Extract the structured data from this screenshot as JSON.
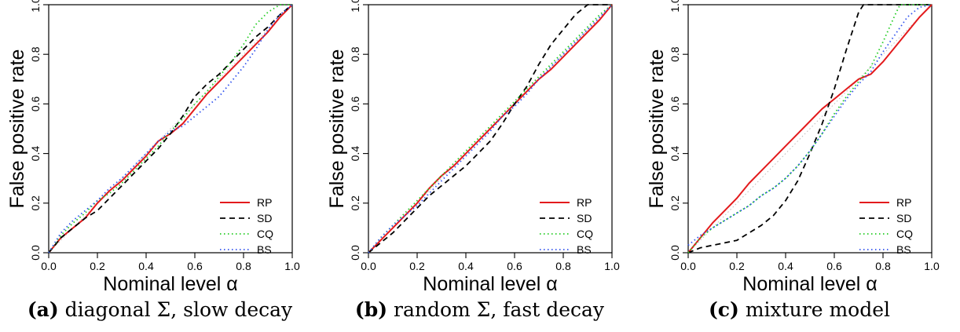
{
  "chart_data": [
    {
      "type": "line",
      "caption_tag": "(a)",
      "caption_text": "diagonal Σ, slow decay",
      "xlabel": "Nominal level α",
      "ylabel": "False positive rate",
      "xlim": [
        0,
        1
      ],
      "ylim": [
        0,
        1
      ],
      "xticks": [
        "0.0",
        "0.2",
        "0.4",
        "0.6",
        "0.8",
        "1.0"
      ],
      "yticks": [
        "0.0",
        "0.2",
        "0.4",
        "0.6",
        "0.8",
        "1.0"
      ],
      "grid": false,
      "legend_position": "bottom-right",
      "reference_line": {
        "x": [
          0,
          1
        ],
        "y": [
          0,
          1
        ],
        "color": "#bbbbbb"
      },
      "series": [
        {
          "name": "RP",
          "color": "#e31a1c",
          "style": "solid",
          "x": [
            0,
            0.05,
            0.1,
            0.15,
            0.2,
            0.25,
            0.3,
            0.35,
            0.4,
            0.45,
            0.5,
            0.55,
            0.6,
            0.65,
            0.7,
            0.75,
            0.8,
            0.85,
            0.9,
            0.95,
            1.0
          ],
          "y": [
            0,
            0.06,
            0.1,
            0.14,
            0.2,
            0.25,
            0.29,
            0.34,
            0.39,
            0.45,
            0.48,
            0.52,
            0.58,
            0.64,
            0.69,
            0.74,
            0.79,
            0.84,
            0.89,
            0.95,
            1.0
          ]
        },
        {
          "name": "SD",
          "color": "#000000",
          "style": "dashed",
          "x": [
            0,
            0.05,
            0.1,
            0.15,
            0.2,
            0.25,
            0.3,
            0.35,
            0.4,
            0.45,
            0.5,
            0.55,
            0.6,
            0.65,
            0.7,
            0.75,
            0.8,
            0.85,
            0.9,
            0.95,
            1.0
          ],
          "y": [
            0,
            0.06,
            0.1,
            0.14,
            0.17,
            0.22,
            0.27,
            0.32,
            0.37,
            0.42,
            0.48,
            0.55,
            0.63,
            0.68,
            0.72,
            0.77,
            0.82,
            0.87,
            0.91,
            0.96,
            1.0
          ]
        },
        {
          "name": "CQ",
          "color": "#22cc22",
          "style": "dotted",
          "x": [
            0,
            0.05,
            0.1,
            0.15,
            0.2,
            0.25,
            0.3,
            0.35,
            0.4,
            0.45,
            0.5,
            0.55,
            0.6,
            0.65,
            0.7,
            0.75,
            0.8,
            0.85,
            0.9,
            0.95,
            1.0
          ],
          "y": [
            0,
            0.07,
            0.12,
            0.16,
            0.21,
            0.24,
            0.28,
            0.33,
            0.38,
            0.43,
            0.49,
            0.54,
            0.6,
            0.65,
            0.71,
            0.77,
            0.84,
            0.92,
            0.97,
            1.0,
            1.0
          ]
        },
        {
          "name": "BS",
          "color": "#3355ee",
          "style": "dotted",
          "x": [
            0,
            0.05,
            0.1,
            0.15,
            0.2,
            0.25,
            0.3,
            0.35,
            0.4,
            0.45,
            0.5,
            0.55,
            0.6,
            0.65,
            0.7,
            0.75,
            0.8,
            0.85,
            0.9,
            0.95,
            1.0
          ],
          "y": [
            0,
            0.08,
            0.13,
            0.17,
            0.21,
            0.26,
            0.3,
            0.35,
            0.4,
            0.45,
            0.49,
            0.51,
            0.55,
            0.59,
            0.63,
            0.69,
            0.75,
            0.82,
            0.9,
            0.96,
            1.0
          ]
        }
      ]
    },
    {
      "type": "line",
      "caption_tag": "(b)",
      "caption_text": "random Σ, fast decay",
      "xlabel": "Nominal level α",
      "ylabel": "False positive rate",
      "xlim": [
        0,
        1
      ],
      "ylim": [
        0,
        1
      ],
      "xticks": [
        "0.0",
        "0.2",
        "0.4",
        "0.6",
        "0.8",
        "1.0"
      ],
      "yticks": [
        "0.0",
        "0.2",
        "0.4",
        "0.6",
        "0.8",
        "1.0"
      ],
      "grid": false,
      "legend_position": "bottom-right",
      "reference_line": {
        "x": [
          0,
          1
        ],
        "y": [
          0,
          1
        ],
        "color": "#bbbbbb"
      },
      "series": [
        {
          "name": "RP",
          "color": "#e31a1c",
          "style": "solid",
          "x": [
            0,
            0.05,
            0.1,
            0.15,
            0.2,
            0.25,
            0.3,
            0.35,
            0.4,
            0.45,
            0.5,
            0.55,
            0.6,
            0.65,
            0.7,
            0.75,
            0.8,
            0.85,
            0.9,
            0.95,
            1.0
          ],
          "y": [
            0,
            0.05,
            0.1,
            0.15,
            0.2,
            0.26,
            0.31,
            0.35,
            0.4,
            0.45,
            0.5,
            0.55,
            0.6,
            0.65,
            0.7,
            0.74,
            0.79,
            0.84,
            0.89,
            0.94,
            1.0
          ]
        },
        {
          "name": "SD",
          "color": "#000000",
          "style": "dashed",
          "x": [
            0,
            0.05,
            0.1,
            0.15,
            0.2,
            0.25,
            0.3,
            0.35,
            0.4,
            0.45,
            0.5,
            0.55,
            0.6,
            0.65,
            0.7,
            0.75,
            0.8,
            0.85,
            0.9,
            0.95,
            1.0
          ],
          "y": [
            0,
            0.04,
            0.08,
            0.13,
            0.18,
            0.23,
            0.27,
            0.31,
            0.35,
            0.4,
            0.45,
            0.52,
            0.6,
            0.67,
            0.76,
            0.84,
            0.9,
            0.96,
            1.0,
            1.0,
            1.0
          ]
        },
        {
          "name": "CQ",
          "color": "#22cc22",
          "style": "dotted",
          "x": [
            0,
            0.05,
            0.1,
            0.15,
            0.2,
            0.25,
            0.3,
            0.35,
            0.4,
            0.45,
            0.5,
            0.55,
            0.6,
            0.65,
            0.7,
            0.75,
            0.8,
            0.85,
            0.9,
            0.95,
            1.0
          ],
          "y": [
            0,
            0.06,
            0.11,
            0.16,
            0.21,
            0.26,
            0.31,
            0.36,
            0.41,
            0.46,
            0.51,
            0.56,
            0.61,
            0.66,
            0.71,
            0.76,
            0.81,
            0.86,
            0.91,
            0.96,
            1.0
          ]
        },
        {
          "name": "BS",
          "color": "#3355ee",
          "style": "dotted",
          "x": [
            0,
            0.05,
            0.1,
            0.15,
            0.2,
            0.25,
            0.3,
            0.35,
            0.4,
            0.45,
            0.5,
            0.55,
            0.6,
            0.65,
            0.7,
            0.75,
            0.8,
            0.85,
            0.9,
            0.95,
            1.0
          ],
          "y": [
            0,
            0.06,
            0.11,
            0.15,
            0.19,
            0.24,
            0.29,
            0.34,
            0.39,
            0.44,
            0.49,
            0.55,
            0.59,
            0.64,
            0.7,
            0.75,
            0.8,
            0.85,
            0.9,
            0.95,
            1.0
          ]
        }
      ]
    },
    {
      "type": "line",
      "caption_tag": "(c)",
      "caption_text": "mixture model",
      "xlabel": "Nominal level α",
      "ylabel": "False positive rate",
      "xlim": [
        0,
        1
      ],
      "ylim": [
        0,
        1
      ],
      "xticks": [
        "0.0",
        "0.2",
        "0.4",
        "0.6",
        "0.8",
        "1.0"
      ],
      "yticks": [
        "0.0",
        "0.2",
        "0.4",
        "0.6",
        "0.8",
        "1.0"
      ],
      "grid": false,
      "legend_position": "bottom-right",
      "reference_line": {
        "x": [
          0,
          1
        ],
        "y": [
          0,
          1
        ],
        "color": "#bbbbbb"
      },
      "series": [
        {
          "name": "RP",
          "color": "#e31a1c",
          "style": "solid",
          "x": [
            0,
            0.05,
            0.1,
            0.15,
            0.2,
            0.25,
            0.3,
            0.35,
            0.4,
            0.45,
            0.5,
            0.55,
            0.6,
            0.65,
            0.7,
            0.75,
            0.8,
            0.85,
            0.9,
            0.95,
            1.0
          ],
          "y": [
            0,
            0.06,
            0.12,
            0.17,
            0.22,
            0.28,
            0.33,
            0.38,
            0.43,
            0.48,
            0.53,
            0.58,
            0.62,
            0.66,
            0.7,
            0.72,
            0.77,
            0.83,
            0.89,
            0.95,
            1.0
          ]
        },
        {
          "name": "SD",
          "color": "#000000",
          "style": "dashed",
          "x": [
            0,
            0.05,
            0.1,
            0.15,
            0.2,
            0.25,
            0.3,
            0.35,
            0.4,
            0.45,
            0.5,
            0.55,
            0.6,
            0.65,
            0.7,
            0.72,
            0.75,
            0.8,
            0.85,
            0.9,
            0.95,
            1.0
          ],
          "y": [
            0,
            0.02,
            0.03,
            0.04,
            0.05,
            0.08,
            0.11,
            0.15,
            0.21,
            0.29,
            0.4,
            0.52,
            0.66,
            0.82,
            0.97,
            1.0,
            1.0,
            1.0,
            1.0,
            1.0,
            1.0,
            1.0
          ]
        },
        {
          "name": "CQ",
          "color": "#22cc22",
          "style": "dotted",
          "x": [
            0,
            0.05,
            0.1,
            0.15,
            0.2,
            0.25,
            0.3,
            0.35,
            0.4,
            0.45,
            0.5,
            0.55,
            0.6,
            0.65,
            0.7,
            0.75,
            0.8,
            0.85,
            0.87,
            0.9,
            0.95,
            1.0
          ],
          "y": [
            0,
            0.06,
            0.1,
            0.13,
            0.16,
            0.19,
            0.23,
            0.26,
            0.3,
            0.35,
            0.41,
            0.48,
            0.56,
            0.63,
            0.69,
            0.75,
            0.85,
            0.96,
            1.0,
            1.0,
            1.0,
            1.0
          ]
        },
        {
          "name": "BS",
          "color": "#3355ee",
          "style": "dotted",
          "x": [
            0,
            0.05,
            0.1,
            0.15,
            0.2,
            0.25,
            0.3,
            0.35,
            0.4,
            0.45,
            0.5,
            0.55,
            0.6,
            0.65,
            0.7,
            0.75,
            0.8,
            0.85,
            0.9,
            0.95,
            1.0
          ],
          "y": [
            0.03,
            0.07,
            0.1,
            0.13,
            0.16,
            0.19,
            0.23,
            0.26,
            0.3,
            0.35,
            0.41,
            0.48,
            0.55,
            0.62,
            0.68,
            0.73,
            0.81,
            0.88,
            0.95,
            0.99,
            1.0
          ]
        }
      ]
    }
  ]
}
